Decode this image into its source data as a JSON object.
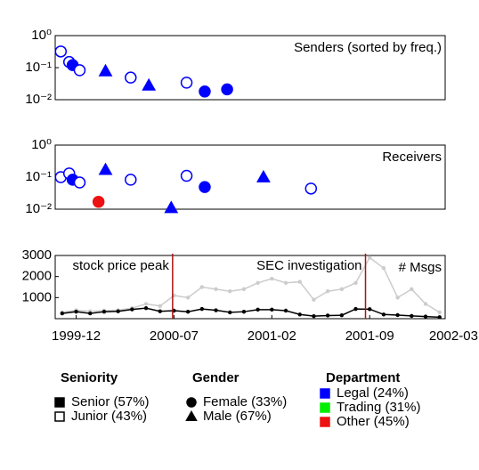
{
  "chart_data": [
    {
      "type": "scatter",
      "label": "Senders (sorted by freq.)",
      "log_y": true,
      "xlim": [
        -1.5,
        26.4
      ],
      "ylim": [
        0.01,
        1
      ],
      "yticks": [
        {
          "value": 1,
          "label": "10⁰"
        },
        {
          "value": 0.1,
          "label": "10⁻¹"
        },
        {
          "value": 0.01,
          "label": "10⁻²"
        }
      ],
      "points": [
        {
          "x": -1.1,
          "y": 0.32,
          "marker": "circle",
          "filled": false,
          "color": "#0000ff"
        },
        {
          "x": -0.5,
          "y": 0.15,
          "marker": "circle",
          "filled": false,
          "color": "#0000ff"
        },
        {
          "x": -0.25,
          "y": 0.12,
          "marker": "circle",
          "filled": true,
          "color": "#0000ff"
        },
        {
          "x": 0.25,
          "y": 0.083,
          "marker": "circle",
          "filled": false,
          "color": "#0000ff"
        },
        {
          "x": 2.1,
          "y": 0.078,
          "marker": "triangle",
          "filled": true,
          "color": "#0000ff"
        },
        {
          "x": 3.9,
          "y": 0.049,
          "marker": "circle",
          "filled": false,
          "color": "#0000ff"
        },
        {
          "x": 5.2,
          "y": 0.028,
          "marker": "triangle",
          "filled": true,
          "color": "#0000ff"
        },
        {
          "x": 7.9,
          "y": 0.034,
          "marker": "circle",
          "filled": false,
          "color": "#0000ff"
        },
        {
          "x": 9.2,
          "y": 0.018,
          "marker": "circle",
          "filled": true,
          "color": "#0000ff"
        },
        {
          "x": 10.8,
          "y": 0.021,
          "marker": "circle",
          "filled": true,
          "color": "#0000ff"
        }
      ]
    },
    {
      "type": "scatter",
      "label": "Receivers",
      "log_y": true,
      "xlim": [
        -1.5,
        26.4
      ],
      "ylim": [
        0.01,
        1
      ],
      "yticks": [
        {
          "value": 1,
          "label": "10⁰"
        },
        {
          "value": 0.1,
          "label": "10⁻¹"
        },
        {
          "value": 0.01,
          "label": "10⁻²"
        }
      ],
      "points": [
        {
          "x": -1.1,
          "y": 0.1,
          "marker": "circle",
          "filled": false,
          "color": "#0000ff"
        },
        {
          "x": -0.5,
          "y": 0.13,
          "marker": "circle",
          "filled": false,
          "color": "#0000ff"
        },
        {
          "x": -0.25,
          "y": 0.083,
          "marker": "circle",
          "filled": true,
          "color": "#0000ff"
        },
        {
          "x": 0.25,
          "y": 0.068,
          "marker": "circle",
          "filled": false,
          "color": "#0000ff"
        },
        {
          "x": 2.1,
          "y": 0.17,
          "marker": "triangle",
          "filled": true,
          "color": "#0000ff"
        },
        {
          "x": 1.6,
          "y": 0.017,
          "marker": "circle",
          "filled": true,
          "color": "#ee1111"
        },
        {
          "x": 3.9,
          "y": 0.083,
          "marker": "circle",
          "filled": false,
          "color": "#0000ff"
        },
        {
          "x": 6.8,
          "y": 0.011,
          "marker": "triangle",
          "filled": true,
          "color": "#0000ff"
        },
        {
          "x": 7.9,
          "y": 0.11,
          "marker": "circle",
          "filled": false,
          "color": "#0000ff"
        },
        {
          "x": 9.2,
          "y": 0.049,
          "marker": "circle",
          "filled": true,
          "color": "#0000ff"
        },
        {
          "x": 13.4,
          "y": 0.1,
          "marker": "triangle",
          "filled": true,
          "color": "#0000ff"
        },
        {
          "x": 16.8,
          "y": 0.044,
          "marker": "circle",
          "filled": false,
          "color": "#0000ff"
        }
      ]
    },
    {
      "type": "line",
      "label": "# Msgs",
      "xlim": [
        -1.5,
        26.4
      ],
      "ylim": [
        0,
        3000
      ],
      "yticks": [
        1000,
        2000,
        3000
      ],
      "xticks": [
        {
          "value": 0,
          "label": "1999-12"
        },
        {
          "value": 7,
          "label": "2000-07"
        },
        {
          "value": 14,
          "label": "2001-02"
        },
        {
          "value": 21,
          "label": "2001-09"
        },
        {
          "value": 27,
          "label": "2002-03"
        }
      ],
      "x": [
        -1,
        0,
        1,
        2,
        3,
        4,
        5,
        6,
        7,
        8,
        9,
        10,
        11,
        12,
        13,
        14,
        15,
        16,
        17,
        18,
        19,
        20,
        21,
        22,
        23,
        24,
        25,
        26
      ],
      "series": [
        {
          "color": "#cccccc",
          "values": [
            300,
            400,
            350,
            380,
            400,
            500,
            700,
            600,
            1100,
            1000,
            1500,
            1400,
            1300,
            1400,
            1700,
            1900,
            1700,
            1750,
            900,
            1300,
            1400,
            1700,
            2900,
            2400,
            1000,
            1400,
            700,
            300
          ]
        },
        {
          "color": "#000000",
          "values": [
            250,
            330,
            250,
            330,
            350,
            440,
            500,
            350,
            380,
            330,
            460,
            400,
            300,
            330,
            430,
            430,
            380,
            200,
            120,
            150,
            160,
            460,
            450,
            200,
            170,
            130,
            100,
            70
          ]
        }
      ],
      "annotations": [
        {
          "x": 6.9,
          "text": "stock price peak",
          "color": "#aa1111"
        },
        {
          "x": 20.7,
          "text": "SEC investigation",
          "color": "#aa1111"
        }
      ]
    }
  ],
  "legend": [
    {
      "title": "Seniority",
      "items": [
        {
          "label": "Senior (57%)",
          "marker": "square",
          "filled": true,
          "color": "#000000"
        },
        {
          "label": "Junior (43%)",
          "marker": "square",
          "filled": false,
          "color": "#000000"
        }
      ]
    },
    {
      "title": "Gender",
      "items": [
        {
          "label": "Female (33%)",
          "marker": "circle",
          "filled": true,
          "color": "#000000"
        },
        {
          "label": "Male (67%)",
          "marker": "triangle",
          "filled": true,
          "color": "#000000"
        }
      ]
    },
    {
      "title": "Department",
      "items": [
        {
          "label": "Legal (24%)",
          "marker": "square",
          "filled": true,
          "color": "#0000ff"
        },
        {
          "label": "Trading (31%)",
          "marker": "square",
          "filled": true,
          "color": "#00ee00"
        },
        {
          "label": "Other (45%)",
          "marker": "square",
          "filled": true,
          "color": "#ee1111"
        }
      ]
    }
  ]
}
